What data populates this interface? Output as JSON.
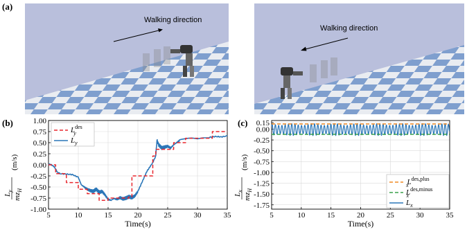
{
  "panels": {
    "a": "(a)",
    "b": "(b)",
    "c": "(c)"
  },
  "scenes": [
    {
      "annotation": "Walking direction",
      "direction": "right"
    },
    {
      "annotation": "Walking direction",
      "direction": "left"
    }
  ],
  "colors": {
    "sky": "#b9bfdc",
    "tile_blue": "#7f9fce",
    "tile_light": "#e9ecf1",
    "des": "#e8262d",
    "actual": "#2a76b8",
    "des_plus": "#f08a24",
    "des_minus": "#3aa14a",
    "grid": "#d9d9d9"
  },
  "chart_data": [
    {
      "type": "line",
      "title": "",
      "xlabel": "Time(s)",
      "ylabel_html": "L_y / m z_H (m/s)",
      "xlim": [
        5,
        35
      ],
      "ylim": [
        -1.0,
        1.0
      ],
      "xticks": [
        5,
        10,
        15,
        20,
        25,
        30,
        35
      ],
      "yticks": [
        -1.0,
        -0.75,
        -0.5,
        -0.25,
        0.0,
        0.25,
        0.5,
        0.75,
        1.0
      ],
      "ytick_labels": [
        "-1.00",
        "-0.75",
        "-0.50",
        "-0.25",
        "0.00",
        "0.25",
        "0.50",
        "0.75",
        "1.00"
      ],
      "xtick_labels": [
        "5",
        "10",
        "15",
        "20",
        "25",
        "30",
        "35"
      ],
      "grid": true,
      "legend": "top-left",
      "series": [
        {
          "name": "L_y^des",
          "style": "dashed",
          "x": [
            5,
            6.2,
            6.2,
            8,
            8,
            10,
            10,
            11.5,
            11.5,
            13.5,
            13.5,
            15,
            15,
            18.5,
            18.5,
            19,
            19,
            20.5,
            20.5,
            22.5,
            22.5,
            23,
            23,
            26,
            26,
            28,
            28,
            31,
            31,
            32.5,
            32.5,
            35
          ],
          "y": [
            0.0,
            0.0,
            -0.2,
            -0.2,
            -0.4,
            -0.4,
            -0.55,
            -0.55,
            -0.65,
            -0.65,
            -0.8,
            -0.8,
            -0.75,
            -0.75,
            -0.72,
            -0.72,
            -0.25,
            -0.25,
            -0.25,
            -0.25,
            0.2,
            0.2,
            0.35,
            0.35,
            0.5,
            0.5,
            0.6,
            0.6,
            0.6,
            0.6,
            0.75,
            0.75
          ]
        },
        {
          "name": "L_y",
          "style": "solid",
          "x": [
            5,
            5.5,
            6,
            6.5,
            7,
            8,
            9,
            10,
            10.5,
            11,
            11.5,
            12,
            12.5,
            13,
            13.5,
            14,
            14.5,
            15,
            15.5,
            16,
            16.5,
            17,
            17.5,
            18,
            18.5,
            19,
            19.5,
            20,
            20.5,
            21,
            21.5,
            22,
            22.5,
            23,
            23.2,
            23.5,
            24,
            24.5,
            25,
            25.5,
            26,
            26.5,
            27,
            28,
            29,
            30,
            31,
            32,
            33,
            34,
            35
          ],
          "y": [
            0.02,
            0.0,
            -0.05,
            -0.17,
            -0.2,
            -0.21,
            -0.22,
            -0.28,
            -0.45,
            -0.5,
            -0.55,
            -0.58,
            -0.6,
            -0.55,
            -0.62,
            -0.6,
            -0.68,
            -0.78,
            -0.8,
            -0.76,
            -0.78,
            -0.74,
            -0.77,
            -0.75,
            -0.72,
            -0.74,
            -0.7,
            -0.6,
            -0.45,
            -0.3,
            -0.15,
            -0.05,
            0.05,
            0.2,
            0.55,
            0.45,
            0.38,
            0.4,
            0.42,
            0.38,
            0.45,
            0.5,
            0.55,
            0.56,
            0.57,
            0.56,
            0.6,
            0.62,
            0.64,
            0.63,
            0.65
          ]
        }
      ]
    },
    {
      "type": "line",
      "title": "",
      "xlabel": "Time(s)",
      "ylabel_html": "L_x / m z_H (m/s)",
      "xlim": [
        5,
        35
      ],
      "ylim": [
        -1.85,
        0.2
      ],
      "xticks": [
        5,
        10,
        15,
        20,
        25,
        30,
        35
      ],
      "yticks": [
        -1.75,
        -1.5,
        -1.25,
        -1.0,
        -0.75,
        -0.5,
        -0.25,
        0.0,
        0.15
      ],
      "ytick_labels": [
        "-1.75",
        "-1.50",
        "-1.25",
        "-1.00",
        "-0.75",
        "-0.50",
        "-0.25",
        "0.00",
        "0.15"
      ],
      "xtick_labels": [
        "5",
        "10",
        "15",
        "20",
        "25",
        "30",
        "35"
      ],
      "grid": true,
      "legend": "bottom-right",
      "series": [
        {
          "name": "L_x^des,plus",
          "style": "dashed",
          "x": [
            5,
            35
          ],
          "y": [
            0.12,
            0.12
          ]
        },
        {
          "name": "L_x^des,minus",
          "style": "dashed",
          "x": [
            5,
            35
          ],
          "y": [
            -0.12,
            -0.12
          ]
        },
        {
          "name": "L_x",
          "style": "solid",
          "amplitude": 0.14,
          "period": 0.55,
          "x_start": 5,
          "x_end": 35
        }
      ]
    }
  ]
}
